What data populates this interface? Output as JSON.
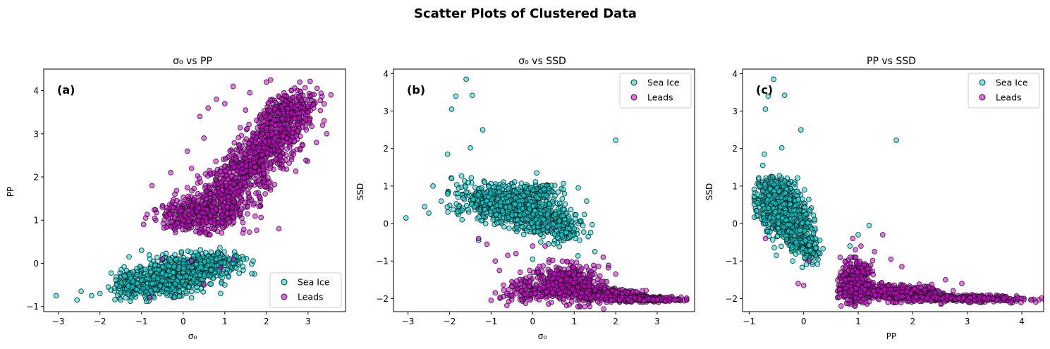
{
  "figure": {
    "title": "Scatter Plots of Clustered Data"
  },
  "chart_data": [
    {
      "type": "scatter",
      "panel": "(a)",
      "title": "σ₀ vs PP",
      "xlabel": "σ₀",
      "ylabel": "PP",
      "xlim": [
        -3.35,
        3.9
      ],
      "ylim": [
        -1.12,
        4.5
      ],
      "xticks": [
        -3,
        -2,
        -1,
        0,
        1,
        2,
        3
      ],
      "yticks": [
        -1,
        0,
        1,
        2,
        3,
        4
      ],
      "legend_position": "lower right",
      "grid": false,
      "series": [
        {
          "name": "Sea Ice",
          "color": "#00e0e0",
          "points": [
            [
              -3.05,
              -0.75
            ],
            [
              -2.55,
              -0.85
            ],
            [
              -2.45,
              -0.65
            ],
            [
              -2.2,
              -0.75
            ],
            [
              -2.0,
              -0.7
            ],
            [
              -1.8,
              -0.55
            ],
            [
              -1.6,
              -0.5
            ],
            [
              -1.4,
              -0.3
            ],
            [
              -1.3,
              0.15
            ],
            [
              -1.2,
              -0.2
            ],
            [
              -1.0,
              0.3
            ],
            [
              -0.8,
              0.1
            ],
            [
              -0.5,
              -0.4
            ],
            [
              -0.2,
              0.2
            ],
            [
              0.0,
              -0.6
            ],
            [
              0.3,
              0.25
            ],
            [
              0.5,
              -0.3
            ],
            [
              0.8,
              0.1
            ],
            [
              1.0,
              -0.5
            ],
            [
              1.2,
              0.0
            ],
            [
              1.45,
              0.1
            ],
            [
              0.2,
              -0.8
            ],
            [
              -0.7,
              -0.8
            ],
            [
              0.9,
              -0.7
            ],
            [
              -1.5,
              -0.85
            ]
          ],
          "clusters": [
            {
              "cx": -0.35,
              "cy": -0.35,
              "rx": 0.95,
              "ry": 0.35,
              "n": 550,
              "rot": 0.18
            },
            {
              "cx": 0.45,
              "cy": -0.05,
              "rx": 0.95,
              "ry": 0.28,
              "n": 350,
              "rot": 0.1
            },
            {
              "cx": -1.3,
              "cy": -0.5,
              "rx": 0.35,
              "ry": 0.3,
              "n": 110,
              "rot": 0.3
            }
          ]
        },
        {
          "name": "Leads",
          "color": "#dd00dd",
          "points": [
            [
              -0.95,
              0.9
            ],
            [
              -0.9,
              1.05
            ],
            [
              -0.75,
              1.8
            ],
            [
              -0.5,
              1.3
            ],
            [
              -0.3,
              2.1
            ],
            [
              -0.2,
              1.6
            ],
            [
              0.1,
              2.6
            ],
            [
              0.2,
              2.2
            ],
            [
              0.4,
              3.4
            ],
            [
              0.5,
              2.9
            ],
            [
              0.6,
              3.6
            ],
            [
              0.8,
              3.8
            ],
            [
              1.0,
              3.7
            ],
            [
              1.2,
              4.1
            ],
            [
              1.5,
              3.55
            ],
            [
              1.6,
              3.95
            ],
            [
              2.0,
              4.2
            ],
            [
              2.1,
              4.25
            ],
            [
              2.6,
              4.0
            ],
            [
              2.8,
              4.2
            ],
            [
              3.0,
              3.5
            ],
            [
              3.1,
              3.9
            ],
            [
              3.2,
              2.8
            ],
            [
              3.35,
              3.2
            ],
            [
              3.55,
              3.9
            ],
            [
              3.45,
              3.0
            ],
            [
              2.3,
              0.8
            ],
            [
              0.4,
              0.7
            ],
            [
              -0.3,
              0.85
            ],
            [
              -0.5,
              0.1
            ],
            [
              0.2,
              0.05
            ],
            [
              0.9,
              -0.1
            ],
            [
              0.5,
              -0.5
            ],
            [
              -0.8,
              -0.8
            ],
            [
              1.2,
              0.1
            ]
          ],
          "clusters": [
            {
              "cx": 0.5,
              "cy": 1.15,
              "rx": 1.05,
              "ry": 0.38,
              "n": 450,
              "rot": 0.05
            },
            {
              "cx": 1.4,
              "cy": 2.0,
              "rx": 1.25,
              "ry": 0.5,
              "n": 550,
              "rot": 0.62
            },
            {
              "cx": 2.15,
              "cy": 2.95,
              "rx": 0.9,
              "ry": 0.5,
              "n": 400,
              "rot": 0.7
            },
            {
              "cx": 2.6,
              "cy": 3.6,
              "rx": 0.6,
              "ry": 0.35,
              "n": 200,
              "rot": 0.3
            }
          ]
        }
      ]
    },
    {
      "type": "scatter",
      "panel": "(b)",
      "title": "σ₀ vs SSD",
      "xlabel": "σ₀",
      "ylabel": "SSD",
      "xlim": [
        -3.35,
        3.9
      ],
      "ylim": [
        -2.35,
        4.12
      ],
      "xticks": [
        -3,
        -2,
        -1,
        0,
        1,
        2,
        3
      ],
      "yticks": [
        -2,
        -1,
        0,
        1,
        2,
        3,
        4
      ],
      "legend_position": "upper right",
      "grid": false,
      "series": [
        {
          "name": "Sea Ice",
          "color": "#00e0e0",
          "points": [
            [
              -3.05,
              0.15
            ],
            [
              -2.6,
              0.45
            ],
            [
              -2.5,
              0.28
            ],
            [
              -2.4,
              1.0
            ],
            [
              -2.2,
              0.6
            ],
            [
              -2.05,
              1.85
            ],
            [
              -1.95,
              3.05
            ],
            [
              -1.85,
              3.4
            ],
            [
              -1.6,
              3.85
            ],
            [
              -1.5,
              2.02
            ],
            [
              -1.45,
              3.42
            ],
            [
              -1.2,
              2.5
            ],
            [
              -1.95,
              1.2
            ],
            [
              -1.8,
              0.8
            ],
            [
              -1.7,
              0.1
            ],
            [
              2.0,
              2.22
            ],
            [
              1.1,
              0.95
            ],
            [
              1.3,
              0.6
            ],
            [
              1.5,
              -0.75
            ],
            [
              0.1,
              1.35
            ],
            [
              -1.3,
              -0.45
            ],
            [
              0.0,
              -0.95
            ],
            [
              0.7,
              -0.3
            ]
          ],
          "clusters": [
            {
              "cx": -0.9,
              "cy": 0.55,
              "rx": 0.9,
              "ry": 0.45,
              "n": 450,
              "rot": -0.2
            },
            {
              "cx": -0.1,
              "cy": 0.3,
              "rx": 0.8,
              "ry": 0.45,
              "n": 350,
              "rot": -0.45
            },
            {
              "cx": 0.6,
              "cy": 0.0,
              "rx": 0.65,
              "ry": 0.4,
              "n": 200,
              "rot": -0.5
            },
            {
              "cx": 0.2,
              "cy": 0.85,
              "rx": 0.45,
              "ry": 0.2,
              "n": 100,
              "rot": 0
            }
          ]
        },
        {
          "name": "Leads",
          "color": "#dd00dd",
          "points": [
            [
              -1.1,
              -0.55
            ],
            [
              -0.9,
              -1.0
            ],
            [
              -0.8,
              -1.25
            ],
            [
              -0.6,
              -0.85
            ],
            [
              -0.5,
              -1.55
            ],
            [
              -0.7,
              -1.95
            ],
            [
              -0.9,
              -1.85
            ],
            [
              -1.0,
              -2.05
            ],
            [
              -0.4,
              -0.8
            ],
            [
              -0.3,
              -1.3
            ],
            [
              0.0,
              -0.6
            ],
            [
              0.3,
              -0.6
            ],
            [
              1.7,
              -0.9
            ],
            [
              2.0,
              -1.35
            ],
            [
              -1.3,
              -0.4
            ]
          ],
          "clusters": [
            {
              "cx": 0.8,
              "cy": -1.6,
              "rx": 0.75,
              "ry": 0.45,
              "n": 450,
              "rot": -0.1
            },
            {
              "cx": 1.7,
              "cy": -1.9,
              "rx": 1.05,
              "ry": 0.15,
              "n": 450,
              "rot": -0.08
            },
            {
              "cx": 2.8,
              "cy": -2.02,
              "rx": 0.7,
              "ry": 0.06,
              "n": 250,
              "rot": 0
            },
            {
              "cx": -0.2,
              "cy": -1.8,
              "rx": 0.45,
              "ry": 0.3,
              "n": 90,
              "rot": 0
            }
          ]
        }
      ]
    },
    {
      "type": "scatter",
      "panel": "(c)",
      "title": "PP vs SSD",
      "xlabel": "PP",
      "ylabel": "SSD",
      "xlim": [
        -1.12,
        4.4
      ],
      "ylim": [
        -2.35,
        4.12
      ],
      "xticks": [
        -1,
        0,
        1,
        2,
        3,
        4
      ],
      "yticks": [
        -2,
        -1,
        0,
        1,
        2,
        3,
        4
      ],
      "legend_position": "upper right",
      "grid": false,
      "series": [
        {
          "name": "Sea Ice",
          "color": "#00e0e0",
          "points": [
            [
              -0.85,
              0.55
            ],
            [
              -0.75,
              1.55
            ],
            [
              -0.72,
              1.85
            ],
            [
              -0.7,
              3.05
            ],
            [
              -0.65,
              3.4
            ],
            [
              -0.55,
              3.85
            ],
            [
              -0.4,
              2.02
            ],
            [
              -0.35,
              3.42
            ],
            [
              -0.05,
              2.5
            ],
            [
              1.7,
              2.22
            ],
            [
              1.2,
              -0.05
            ],
            [
              0.3,
              -0.8
            ],
            [
              0.85,
              -0.6
            ],
            [
              1.0,
              -0.3
            ],
            [
              -0.5,
              -0.85
            ],
            [
              -0.2,
              -1.0
            ]
          ],
          "clusters": [
            {
              "cx": -0.45,
              "cy": 0.5,
              "rx": 0.35,
              "ry": 0.55,
              "n": 450,
              "rot": 0
            },
            {
              "cx": -0.25,
              "cy": 0.05,
              "rx": 0.35,
              "ry": 0.6,
              "n": 350,
              "rot": 0.2
            },
            {
              "cx": 0.0,
              "cy": -0.55,
              "rx": 0.25,
              "ry": 0.45,
              "n": 200,
              "rot": 0.3
            },
            {
              "cx": -0.55,
              "cy": 0.95,
              "rx": 0.3,
              "ry": 0.25,
              "n": 120,
              "rot": 0
            }
          ]
        },
        {
          "name": "Leads",
          "color": "#dd00dd",
          "points": [
            [
              -0.7,
              -0.4
            ],
            [
              0.9,
              -0.4
            ],
            [
              0.95,
              -0.7
            ],
            [
              1.05,
              -0.6
            ],
            [
              1.3,
              -0.75
            ],
            [
              1.45,
              -0.3
            ],
            [
              1.6,
              -0.95
            ],
            [
              1.8,
              -1.15
            ],
            [
              2.6,
              -1.5
            ],
            [
              2.9,
              -1.6
            ],
            [
              0.1,
              -1.0
            ],
            [
              -0.1,
              -1.6
            ],
            [
              0.0,
              -1.65
            ]
          ],
          "clusters": [
            {
              "cx": 0.95,
              "cy": -1.55,
              "rx": 0.25,
              "ry": 0.5,
              "n": 400,
              "rot": 0
            },
            {
              "cx": 1.7,
              "cy": -1.85,
              "rx": 0.8,
              "ry": 0.2,
              "n": 500,
              "rot": -0.05
            },
            {
              "cx": 3.0,
              "cy": -2.0,
              "rx": 1.1,
              "ry": 0.08,
              "n": 350,
              "rot": -0.02
            }
          ]
        }
      ]
    }
  ]
}
